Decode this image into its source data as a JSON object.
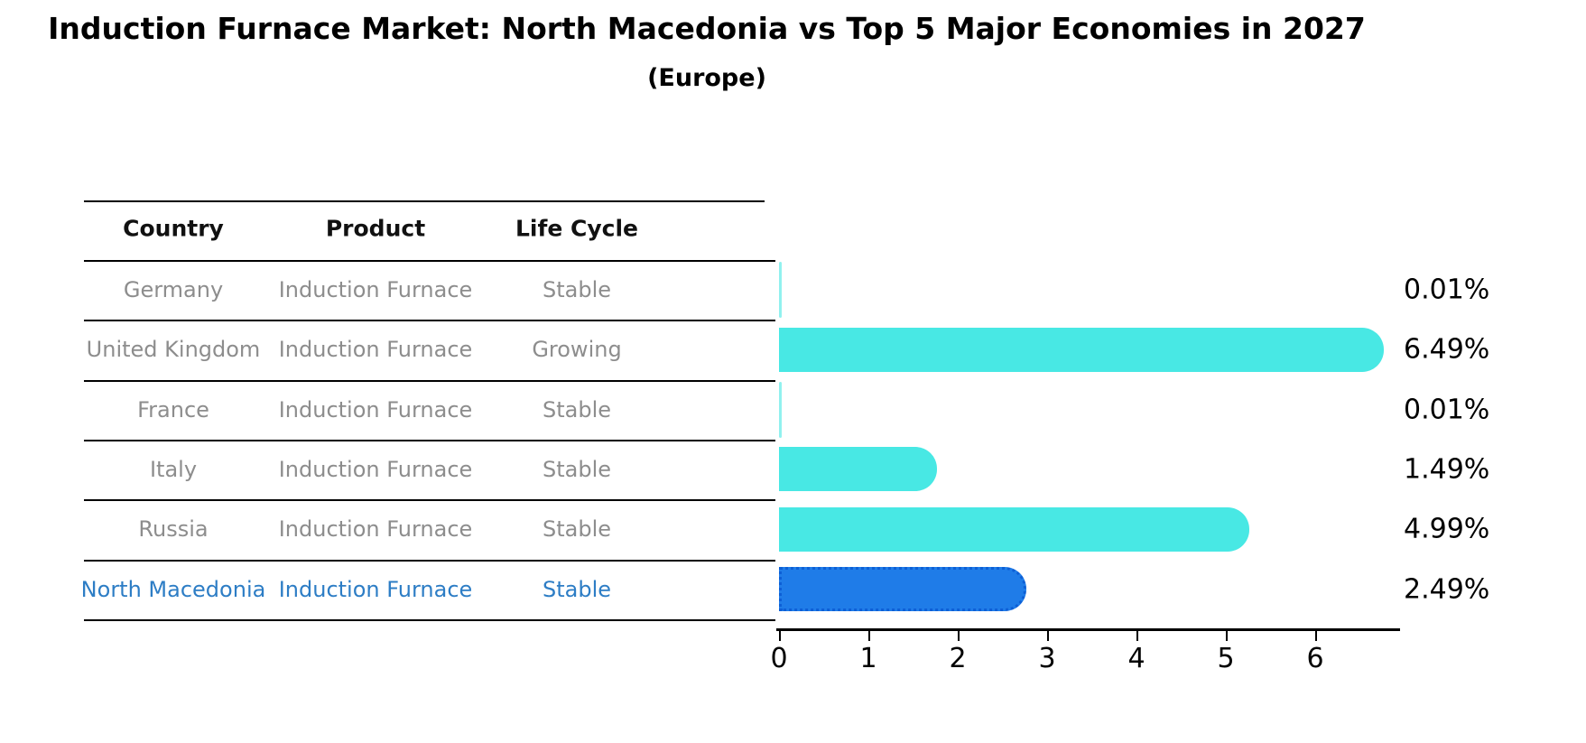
{
  "title": "Induction Furnace Market: North Macedonia vs Top 5 Major Economies in 2027",
  "subtitle": "(Europe)",
  "table": {
    "headers": [
      "Country",
      "Product",
      "Life Cycle"
    ],
    "rows": [
      {
        "country": "Germany",
        "product": "Induction Furnace",
        "life_cycle": "Stable",
        "highlight": false
      },
      {
        "country": "United Kingdom",
        "product": "Induction Furnace",
        "life_cycle": "Growing",
        "highlight": false
      },
      {
        "country": "France",
        "product": "Induction Furnace",
        "life_cycle": "Stable",
        "highlight": false
      },
      {
        "country": "Italy",
        "product": "Induction Furnace",
        "life_cycle": "Stable",
        "highlight": false
      },
      {
        "country": "Russia",
        "product": "Induction Furnace",
        "life_cycle": "Stable",
        "highlight": false
      },
      {
        "country": "North Macedonia",
        "product": "Induction Furnace",
        "life_cycle": "Stable",
        "highlight": true
      }
    ]
  },
  "chart_data": {
    "type": "bar",
    "orientation": "horizontal",
    "categories": [
      "Germany",
      "United Kingdom",
      "France",
      "Italy",
      "Russia",
      "North Macedonia"
    ],
    "values": [
      0.01,
      6.49,
      0.01,
      1.49,
      4.99,
      2.49
    ],
    "value_labels": [
      "0.01%",
      "6.49%",
      "0.01%",
      "1.49%",
      "4.99%",
      "2.49%"
    ],
    "x_ticks": [
      0,
      1,
      2,
      3,
      4,
      5,
      6
    ],
    "x_tick_labels": [
      "0",
      "1",
      "2",
      "3",
      "4",
      "5",
      "6"
    ],
    "xlim": [
      0,
      6.95
    ],
    "grid": false,
    "legend": "none",
    "bar_color": "#48E8E4",
    "highlight_color": "#1F7CE8",
    "highlight_index": 5,
    "highlight_text_color": "#2d7dc5"
  }
}
